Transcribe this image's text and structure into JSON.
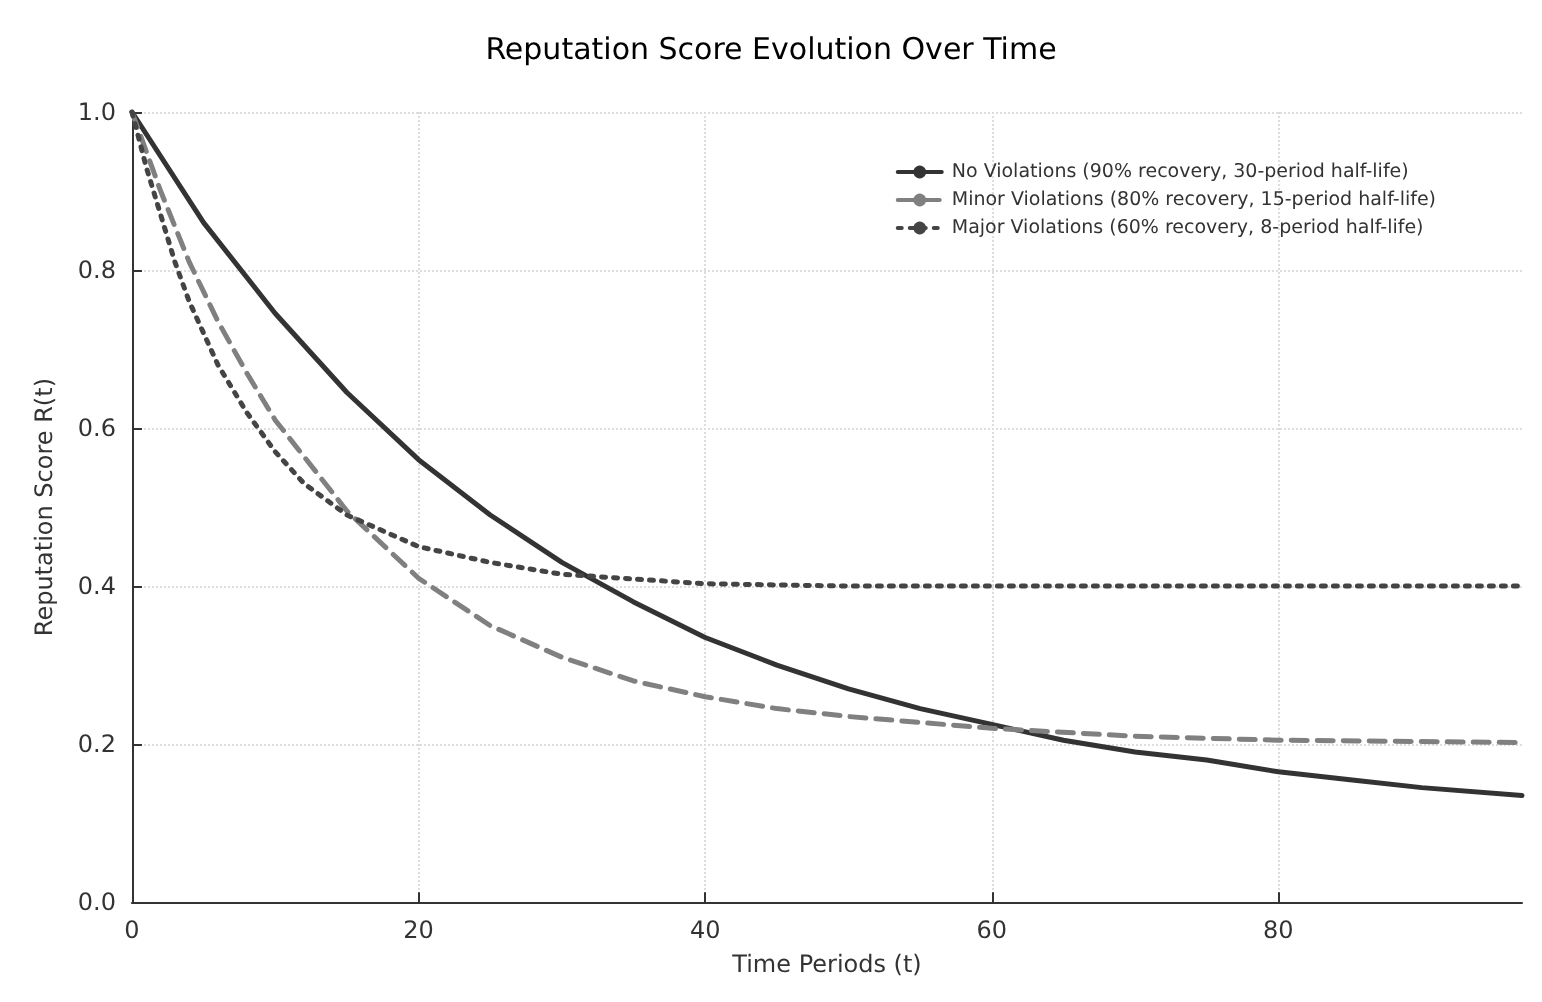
{
  "chart_data": {
    "type": "line",
    "title": "Reputation Score Evolution Over Time",
    "xlabel": "Time Periods (t)",
    "ylabel": "Reputation Score R(t)",
    "xlim": [
      0,
      97
    ],
    "xticks": [
      0,
      20,
      40,
      60,
      80
    ],
    "ylim": [
      0,
      1
    ],
    "yticks": [
      {
        "value": 0,
        "label": "0.0"
      },
      {
        "value": 0.2,
        "label": "0.2"
      },
      {
        "value": 0.4,
        "label": "0.4"
      },
      {
        "value": 0.6,
        "label": "0.6"
      },
      {
        "value": 0.8,
        "label": "0.8"
      },
      {
        "value": 1,
        "label": "1.0"
      }
    ],
    "grid": true,
    "legend": "top right",
    "marker": "none",
    "series": [
      {
        "name": "No Violations (90% recovery, 30-period half-life)",
        "color": "#333333",
        "line_style": "solid",
        "x": [
          0,
          5,
          10,
          15,
          20,
          25,
          30,
          35,
          40,
          45,
          50,
          55,
          60,
          65,
          70,
          75,
          80,
          85,
          90,
          97
        ],
        "values": [
          1.0,
          0.86,
          0.745,
          0.645,
          0.56,
          0.49,
          0.43,
          0.38,
          0.335,
          0.3,
          0.27,
          0.245,
          0.225,
          0.205,
          0.19,
          0.18,
          0.165,
          0.155,
          0.145,
          0.135
        ]
      },
      {
        "name": "Minor Violations (80% recovery, 15-period half-life)",
        "color": "#808080",
        "line_style": "dashed",
        "x": [
          0,
          2,
          4,
          6,
          8,
          10,
          15,
          20,
          25,
          30,
          35,
          40,
          45,
          50,
          60,
          70,
          80,
          97
        ],
        "values": [
          1.0,
          0.9,
          0.81,
          0.735,
          0.67,
          0.61,
          0.495,
          0.41,
          0.35,
          0.31,
          0.28,
          0.26,
          0.245,
          0.235,
          0.22,
          0.21,
          0.205,
          0.202
        ]
      },
      {
        "name": "Major Violations (60% recovery, 8-period half-life)",
        "color": "#444444",
        "line_style": "dotted",
        "x": [
          0,
          1,
          2,
          3,
          4,
          6,
          8,
          10,
          12,
          15,
          20,
          25,
          30,
          40,
          50,
          97
        ],
        "values": [
          1.0,
          0.93,
          0.87,
          0.81,
          0.76,
          0.68,
          0.62,
          0.57,
          0.53,
          0.49,
          0.45,
          0.43,
          0.415,
          0.403,
          0.4,
          0.4
        ]
      }
    ]
  }
}
